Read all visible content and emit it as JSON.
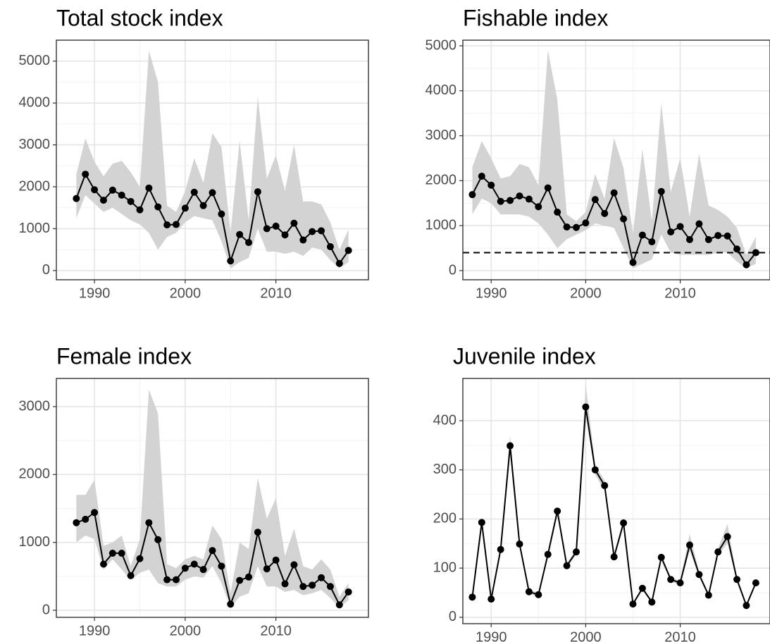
{
  "chart_data": [
    {
      "type": "line",
      "title": "Total stock index",
      "x": [
        1988,
        1989,
        1990,
        1991,
        1992,
        1993,
        1994,
        1995,
        1996,
        1997,
        1998,
        1999,
        2000,
        2001,
        2002,
        2003,
        2004,
        2005,
        2006,
        2007,
        2008,
        2009,
        2010,
        2011,
        2012,
        2013,
        2014,
        2015,
        2016,
        2017,
        2018
      ],
      "series": [
        {
          "color": "#000000",
          "band_color": "#d3d3d3",
          "values": [
            1720,
            2300,
            1930,
            1680,
            1920,
            1800,
            1650,
            1450,
            1970,
            1520,
            1090,
            1100,
            1490,
            1870,
            1550,
            1860,
            1350,
            230,
            860,
            670,
            1880,
            1000,
            1060,
            850,
            1130,
            730,
            930,
            950,
            570,
            170,
            480
          ],
          "upper": [
            2300,
            3150,
            2600,
            2250,
            2550,
            2620,
            2350,
            2000,
            5250,
            4500,
            1550,
            1400,
            1900,
            2680,
            2100,
            3280,
            2950,
            900,
            3100,
            1200,
            4150,
            2200,
            2750,
            1900,
            3000,
            1650,
            1650,
            1580,
            1150,
            500,
            980
          ],
          "lower": [
            1250,
            1800,
            1600,
            1400,
            1500,
            1350,
            1200,
            1100,
            900,
            500,
            800,
            900,
            1150,
            1300,
            1250,
            1200,
            700,
            50,
            200,
            300,
            1000,
            450,
            450,
            400,
            450,
            350,
            550,
            500,
            250,
            60,
            200
          ]
        }
      ],
      "xlim": [
        1985.8,
        2020.2
      ],
      "xticks": [
        1990,
        2000,
        2010
      ],
      "ylim": [
        -220,
        5500
      ],
      "yticks": [
        0,
        1000,
        2000,
        3000,
        4000,
        5000
      ],
      "grid": true
    },
    {
      "type": "line",
      "title": "Fishable index",
      "x": [
        1988,
        1989,
        1990,
        1991,
        1992,
        1993,
        1994,
        1995,
        1996,
        1997,
        1998,
        1999,
        2000,
        2001,
        2002,
        2003,
        2004,
        2005,
        2006,
        2007,
        2008,
        2009,
        2010,
        2011,
        2012,
        2013,
        2014,
        2015,
        2016,
        2017,
        2018
      ],
      "series": [
        {
          "color": "#000000",
          "band_color": "#d3d3d3",
          "values": [
            1690,
            2100,
            1900,
            1540,
            1560,
            1660,
            1590,
            1420,
            1840,
            1300,
            970,
            960,
            1060,
            1580,
            1270,
            1730,
            1150,
            180,
            790,
            640,
            1760,
            860,
            980,
            690,
            1040,
            690,
            780,
            770,
            480,
            130,
            400
          ],
          "upper": [
            2300,
            2880,
            2500,
            2050,
            2100,
            2370,
            2300,
            1900,
            4900,
            3800,
            1250,
            1100,
            1300,
            2150,
            1600,
            2950,
            2280,
            830,
            2700,
            1100,
            3720,
            1750,
            2500,
            1200,
            2600,
            1450,
            1350,
            1200,
            950,
            350,
            750
          ],
          "lower": [
            1250,
            1600,
            1500,
            1250,
            1250,
            1250,
            1200,
            1050,
            800,
            500,
            700,
            800,
            900,
            1050,
            1000,
            950,
            500,
            50,
            150,
            250,
            800,
            400,
            350,
            350,
            350,
            350,
            400,
            400,
            200,
            50,
            150
          ]
        }
      ],
      "hline": 400,
      "xlim": [
        1987,
        2019.5
      ],
      "xticks": [
        1990,
        2000,
        2010
      ],
      "ylim": [
        -204,
        5125
      ],
      "yticks": [
        0,
        1000,
        2000,
        3000,
        4000,
        5000
      ],
      "grid": true
    },
    {
      "type": "line",
      "title": "Female index",
      "x": [
        1988,
        1989,
        1990,
        1991,
        1992,
        1993,
        1994,
        1995,
        1996,
        1997,
        1998,
        1999,
        2000,
        2001,
        2002,
        2003,
        2004,
        2005,
        2006,
        2007,
        2008,
        2009,
        2010,
        2011,
        2012,
        2013,
        2014,
        2015,
        2016,
        2017,
        2018
      ],
      "series": [
        {
          "color": "#000000",
          "band_color": "#d3d3d3",
          "values": [
            1290,
            1340,
            1440,
            680,
            840,
            840,
            510,
            760,
            1290,
            1040,
            450,
            450,
            620,
            680,
            600,
            880,
            650,
            90,
            440,
            490,
            1150,
            610,
            740,
            390,
            670,
            350,
            370,
            480,
            350,
            80,
            270
          ],
          "upper": [
            1700,
            1700,
            1920,
            950,
            1000,
            1100,
            650,
            1050,
            3250,
            2900,
            680,
            620,
            750,
            800,
            750,
            1250,
            1050,
            250,
            1000,
            900,
            1950,
            1350,
            1650,
            800,
            1200,
            650,
            600,
            750,
            600,
            200,
            400
          ],
          "lower": [
            1000,
            1100,
            1050,
            600,
            750,
            600,
            450,
            550,
            600,
            400,
            350,
            350,
            450,
            500,
            480,
            650,
            400,
            40,
            200,
            250,
            650,
            350,
            350,
            270,
            300,
            220,
            250,
            300,
            180,
            40,
            150
          ]
        }
      ],
      "xlim": [
        1985.8,
        2020.2
      ],
      "xticks": [
        1990,
        2000,
        2010
      ],
      "ylim": [
        -104,
        3415
      ],
      "yticks": [
        0,
        1000,
        2000,
        3000
      ],
      "grid": true
    },
    {
      "type": "line",
      "title": "Juvenile index",
      "x": [
        1988,
        1989,
        1990,
        1991,
        1992,
        1993,
        1994,
        1995,
        1996,
        1997,
        1998,
        1999,
        2000,
        2001,
        2002,
        2003,
        2004,
        2005,
        2006,
        2007,
        2008,
        2009,
        2010,
        2011,
        2012,
        2013,
        2014,
        2015,
        2016,
        2017,
        2018
      ],
      "series": [
        {
          "color": "#000000",
          "band_color": "#d3d3d3",
          "values": [
            41,
            193,
            37,
            138,
            349,
            149,
            52,
            46,
            128,
            216,
            105,
            133,
            428,
            300,
            268,
            123,
            192,
            27,
            59,
            31,
            122,
            77,
            70,
            147,
            87,
            45,
            133,
            164,
            77,
            24,
            70
          ],
          "upper": [
            45,
            200,
            40,
            145,
            370,
            155,
            56,
            50,
            133,
            225,
            110,
            138,
            475,
            310,
            278,
            128,
            200,
            30,
            63,
            34,
            128,
            81,
            74,
            170,
            92,
            48,
            140,
            190,
            81,
            26,
            73
          ],
          "lower": [
            37,
            185,
            34,
            131,
            330,
            142,
            48,
            42,
            122,
            207,
            100,
            128,
            410,
            290,
            258,
            118,
            184,
            24,
            55,
            28,
            116,
            73,
            66,
            135,
            82,
            42,
            126,
            150,
            73,
            22,
            67
          ]
        }
      ],
      "xlim": [
        1987,
        2019.5
      ],
      "xticks": [
        1990,
        2000,
        2010
      ],
      "ylim": [
        -13,
        486
      ],
      "yticks": [
        0,
        100,
        200,
        300,
        400
      ],
      "grid": true
    }
  ]
}
